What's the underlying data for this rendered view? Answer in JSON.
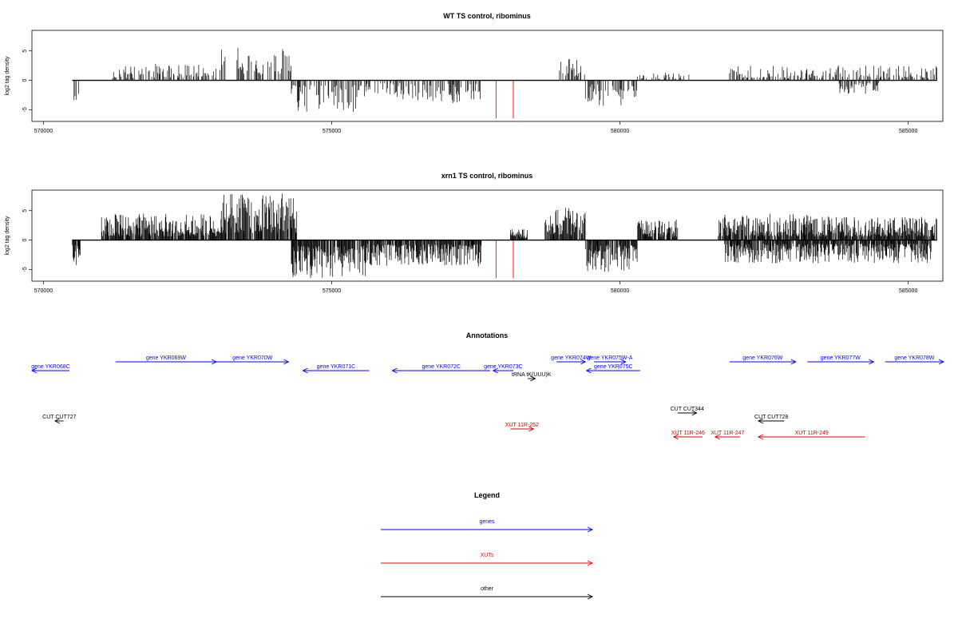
{
  "chart_data": [
    {
      "type": "bar",
      "title": "WT TS control, ribominus",
      "ylabel": "log2 tag density",
      "xlabel": "",
      "xlim": [
        569800,
        585600
      ],
      "ylim": [
        -7,
        8.5
      ],
      "x_ticks": [
        570000,
        575000,
        580000,
        585000
      ],
      "y_ticks": [
        -5,
        0,
        5
      ],
      "x_tick_labels": [
        "570000",
        "575000",
        "580000",
        "585000"
      ],
      "y_tick_labels": [
        "-5",
        "0",
        "5"
      ],
      "baseline": [
        570500,
        585500
      ],
      "grid": false,
      "red_lines": [
        577850,
        578150
      ],
      "red_line_depth": -6.5,
      "segments": [
        {
          "x": [
            570500,
            570650
          ],
          "sign": -1,
          "max": 4.5
        },
        {
          "x": [
            571200,
            571800
          ],
          "sign": 1,
          "max": 2.5
        },
        {
          "x": [
            571800,
            573000
          ],
          "sign": 1,
          "max": 2.8
        },
        {
          "x": [
            573000,
            574300
          ],
          "sign": 1,
          "max": 5.8
        },
        {
          "x": [
            574300,
            575600
          ],
          "sign": -1,
          "max": 5.5
        },
        {
          "x": [
            575600,
            576200
          ],
          "sign": -1,
          "max": 3
        },
        {
          "x": [
            576200,
            577600
          ],
          "sign": -1,
          "max": 4
        },
        {
          "x": [
            578950,
            579400
          ],
          "sign": 1,
          "max": 4
        },
        {
          "x": [
            579400,
            580300
          ],
          "sign": -1,
          "max": 4.5
        },
        {
          "x": [
            580300,
            581200
          ],
          "sign": 1,
          "max": 1.5
        },
        {
          "x": [
            581900,
            582900
          ],
          "sign": 1,
          "max": 2.5
        },
        {
          "x": [
            582900,
            583600
          ],
          "sign": 1,
          "max": 2.0
        },
        {
          "x": [
            583600,
            585500
          ],
          "sign": 1,
          "max": 2.6
        },
        {
          "x": [
            583800,
            584500
          ],
          "sign": -1,
          "max": 2.5
        }
      ]
    },
    {
      "type": "bar",
      "title": "xrn1 TS control, ribominus",
      "ylabel": "log2 tag density",
      "xlabel": "",
      "xlim": [
        569800,
        585600
      ],
      "ylim": [
        -7,
        8.5
      ],
      "x_ticks": [
        570000,
        575000,
        580000,
        585000
      ],
      "y_ticks": [
        -5,
        0,
        5
      ],
      "x_tick_labels": [
        "570000",
        "575000",
        "580000",
        "585000"
      ],
      "y_tick_labels": [
        "-5",
        "0",
        "5"
      ],
      "baseline": [
        570500,
        585500
      ],
      "grid": false,
      "red_lines": [
        577850,
        578150
      ],
      "red_line_depth": -6.5,
      "segments": [
        {
          "x": [
            570500,
            570650
          ],
          "sign": -1,
          "max": 5.5
        },
        {
          "x": [
            571000,
            573000
          ],
          "sign": 1,
          "max": 4.5
        },
        {
          "x": [
            573000,
            574400
          ],
          "sign": 1,
          "max": 8.0
        },
        {
          "x": [
            574300,
            575600
          ],
          "sign": -1,
          "max": 6.5
        },
        {
          "x": [
            575600,
            577600
          ],
          "sign": -1,
          "max": 4.5
        },
        {
          "x": [
            578100,
            578400
          ],
          "sign": 1,
          "max": 2.0
        },
        {
          "x": [
            578700,
            579400
          ],
          "sign": 1,
          "max": 5.5
        },
        {
          "x": [
            579400,
            580300
          ],
          "sign": -1,
          "max": 5.5
        },
        {
          "x": [
            580300,
            581000
          ],
          "sign": 1,
          "max": 3.5
        },
        {
          "x": [
            581700,
            583400
          ],
          "sign": 1,
          "max": 4.5
        },
        {
          "x": [
            583400,
            585500
          ],
          "sign": 1,
          "max": 4.0
        },
        {
          "x": [
            581800,
            585400
          ],
          "sign": -1,
          "max": 4.0
        }
      ]
    }
  ],
  "annotations": {
    "title": "Annotations",
    "items": [
      {
        "label": "gene YKR068C",
        "x1": 570450,
        "x2": 569800,
        "row": 1,
        "kind": "gene"
      },
      {
        "label": "gene YKR069W",
        "x1": 571250,
        "x2": 573000,
        "row": 0,
        "kind": "gene"
      },
      {
        "label": "gene YKR070W",
        "x1": 573000,
        "x2": 574250,
        "row": 0,
        "kind": "gene"
      },
      {
        "label": "gene YKR071C",
        "x1": 575650,
        "x2": 574500,
        "row": 1,
        "kind": "gene"
      },
      {
        "label": "gene YKR072C",
        "x1": 577750,
        "x2": 576050,
        "row": 1,
        "kind": "gene"
      },
      {
        "label": "gene YKR073C",
        "x1": 578150,
        "x2": 577800,
        "row": 1,
        "kind": "gene"
      },
      {
        "label": "gene YKR074W",
        "x1": 578900,
        "x2": 579400,
        "row": 0,
        "kind": "gene"
      },
      {
        "label": "gene YKR075W-A",
        "x1": 579550,
        "x2": 580100,
        "row": 0,
        "kind": "gene"
      },
      {
        "label": "gene YKR075C",
        "x1": 580350,
        "x2": 579420,
        "row": 1,
        "kind": "gene"
      },
      {
        "label": "gene YKR076W",
        "x1": 581900,
        "x2": 583050,
        "row": 0,
        "kind": "gene"
      },
      {
        "label": "gene YKR077W",
        "x1": 583250,
        "x2": 584400,
        "row": 0,
        "kind": "gene"
      },
      {
        "label": "gene YKR078W",
        "x1": 584600,
        "x2": 586000,
        "row": 0,
        "kind": "gene"
      },
      {
        "label": "tRNA tK(UUU)K",
        "x1": 578400,
        "x2": 578530,
        "row": 2,
        "kind": "other"
      },
      {
        "label": "CUT CUT727",
        "x1": 570350,
        "x2": 570200,
        "row": 4,
        "kind": "other"
      },
      {
        "label": "CUT CUT344",
        "x1": 581000,
        "x2": 581330,
        "row": 3,
        "kind": "other"
      },
      {
        "label": "CUT CUT728",
        "x1": 582850,
        "x2": 582400,
        "row": 4,
        "kind": "other"
      },
      {
        "label": "XUT 11R-252",
        "x1": 578100,
        "x2": 578500,
        "row": 5,
        "kind": "xut"
      },
      {
        "label": "XUT 11R-246",
        "x1": 581430,
        "x2": 580930,
        "row": 6,
        "kind": "xut"
      },
      {
        "label": "XUT 11R-247",
        "x1": 582080,
        "x2": 581650,
        "row": 6,
        "kind": "xut"
      },
      {
        "label": "XUT 11R-249",
        "x1": 584250,
        "x2": 582400,
        "row": 6,
        "kind": "xut"
      }
    ]
  },
  "legend": {
    "title": "Legend",
    "entries": [
      {
        "label": "genes",
        "color": "#0000ff"
      },
      {
        "label": "XUTs",
        "color": "#ff0000"
      },
      {
        "label": "other",
        "color": "#000000"
      }
    ]
  },
  "colors": {
    "gene": "#0000ff",
    "xut": "#e00000",
    "other": "#000000",
    "red_line": "#ff0000"
  }
}
